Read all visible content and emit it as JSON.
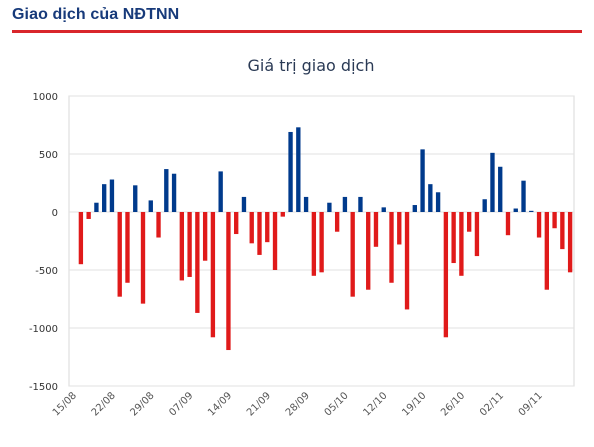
{
  "header": {
    "title": "Giao dịch của NĐTNN"
  },
  "chart_data": {
    "type": "bar",
    "title": "Giá trị giao dịch",
    "xlabel": "",
    "ylabel": "",
    "ylim": [
      -1500,
      1000
    ],
    "yticks": [
      1000,
      500,
      0,
      -500,
      -1000,
      -1500
    ],
    "grid": true,
    "colors": {
      "positive": "#003a8c",
      "negative": "#e01a1a",
      "accent": "#d9262b"
    },
    "x_tick_labels": [
      "15/08",
      "22/08",
      "29/08",
      "07/09",
      "14/09",
      "21/09",
      "28/09",
      "05/10",
      "12/10",
      "19/10",
      "26/10",
      "02/11",
      "09/11"
    ],
    "x_tick_positions": [
      0,
      5,
      10,
      15,
      20,
      25,
      30,
      35,
      40,
      45,
      50,
      55,
      60
    ],
    "values": [
      -450,
      -60,
      80,
      240,
      280,
      -730,
      -610,
      230,
      -790,
      100,
      -220,
      370,
      330,
      -590,
      -560,
      -870,
      -420,
      -1080,
      350,
      -1190,
      -190,
      130,
      -270,
      -370,
      -260,
      -500,
      -40,
      690,
      730,
      130,
      -550,
      -520,
      80,
      -170,
      130,
      -730,
      130,
      -670,
      -300,
      40,
      -610,
      -280,
      -840,
      60,
      540,
      240,
      170,
      -1080,
      -440,
      -550,
      -170,
      -380,
      110,
      510,
      390,
      -200,
      30,
      270,
      10,
      -220,
      -670,
      -140,
      -320,
      -520
    ]
  }
}
